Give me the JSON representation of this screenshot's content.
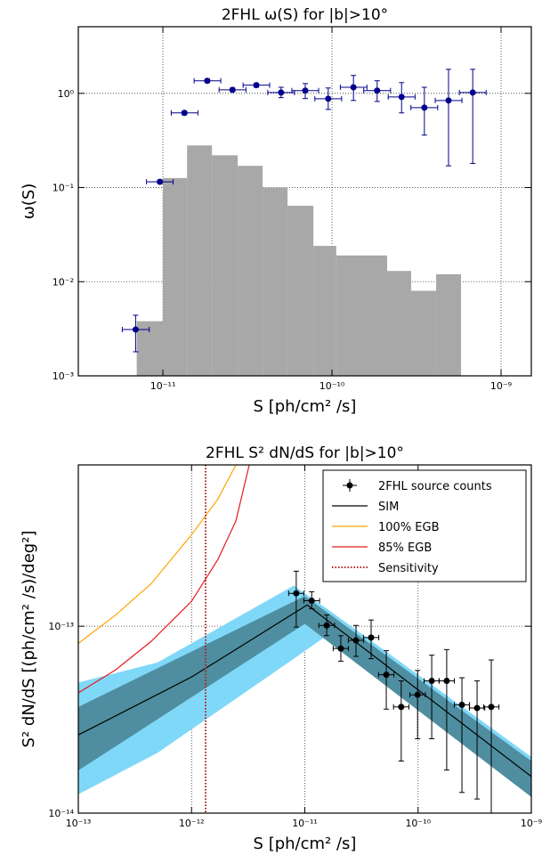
{
  "chart_data": [
    {
      "type": "histogram",
      "title": "2FHL ω(S) for |b|>10°",
      "xlabel": "S [ph/cm² /s]",
      "ylabel": "ω(S)",
      "log_x": true,
      "log_y": true,
      "grid": true,
      "xlim": [
        3.16e-12,
        1.51e-09
      ],
      "ylim": [
        0.001,
        5.1
      ],
      "xticks": [
        {
          "value": 1e-11,
          "label": "10⁻¹¹"
        },
        {
          "value": 1e-10,
          "label": "10⁻¹⁰"
        },
        {
          "value": 1e-09,
          "label": "10⁻⁹"
        }
      ],
      "yticks": [
        {
          "value": 0.001,
          "label": "10⁻³"
        },
        {
          "value": 0.01,
          "label": "10⁻²"
        },
        {
          "value": 0.1,
          "label": "10⁻¹"
        },
        {
          "value": 1,
          "label": "10⁰"
        }
      ],
      "bins": [
        7e-12,
        1e-11,
        1.39e-11,
        1.95e-11,
        2.77e-11,
        3.89e-11,
        5.46e-11,
        7.76e-11,
        1.06e-10,
        1.51e-10,
        2.12e-10,
        2.94e-10,
        4.13e-10,
        5.8e-10
      ],
      "values": [
        0.0038,
        0.126,
        0.28,
        0.22,
        0.17,
        0.1,
        0.064,
        0.024,
        0.019,
        0.019,
        0.013,
        0.008,
        0.012
      ],
      "color": "#a8a8a8",
      "points": {
        "color": "#00008b",
        "x": [
          6.9e-12,
          9.6e-12,
          1.34e-11,
          1.83e-11,
          2.58e-11,
          3.57e-11,
          5e-11,
          6.95e-11,
          9.5e-11,
          1.34e-10,
          1.85e-10,
          2.58e-10,
          3.52e-10,
          4.89e-10,
          6.8e-10
        ],
        "values": [
          0.0031,
          0.115,
          0.62,
          1.36,
          1.09,
          1.22,
          1.02,
          1.07,
          0.877,
          1.16,
          1.07,
          0.916,
          0.705,
          0.84,
          1.02
        ],
        "x_lo": [
          5.75e-12,
          8e-12,
          1.12e-11,
          1.53e-11,
          2.15e-11,
          2.98e-11,
          4.17e-11,
          5.79e-11,
          7.92e-11,
          1.12e-10,
          1.54e-10,
          2.15e-10,
          2.93e-10,
          4.08e-10,
          5.67e-10
        ],
        "x_hi": [
          8.3e-12,
          1.15e-11,
          1.61e-11,
          2.2e-11,
          3.1e-11,
          4.28e-11,
          6e-11,
          8.34e-11,
          1.14e-10,
          1.61e-10,
          2.22e-10,
          3.1e-10,
          4.22e-10,
          5.87e-10,
          8.16e-10
        ],
        "y_lo": [
          0.0018,
          0.11,
          0.59,
          1.3,
          1.04,
          1.16,
          0.9,
          0.88,
          0.675,
          0.84,
          0.82,
          0.62,
          0.36,
          0.17,
          0.18
        ],
        "y_hi": [
          0.0044,
          0.12,
          0.65,
          1.42,
          1.14,
          1.28,
          1.16,
          1.27,
          1.14,
          1.55,
          1.36,
          1.3,
          1.16,
          1.8,
          1.8
        ]
      }
    },
    {
      "type": "line",
      "title": "2FHL S² dN/dS for |b|>10°",
      "xlabel": "S [ph/cm² /s]",
      "ylabel": "S² dN/dS [(ph/cm² /s)/deg²]",
      "log_x": true,
      "log_y": true,
      "grid": true,
      "legend": "upper right",
      "xlim": [
        1e-13,
        1e-09
      ],
      "ylim": [
        1e-14,
        7.3e-13
      ],
      "xticks": [
        {
          "value": 1e-13,
          "label": "10⁻¹³"
        },
        {
          "value": 1e-12,
          "label": "10⁻¹²"
        },
        {
          "value": 1e-11,
          "label": "10⁻¹¹"
        },
        {
          "value": 1e-10,
          "label": "10⁻¹⁰"
        },
        {
          "value": 1e-09,
          "label": "10⁻⁹"
        }
      ],
      "yticks": [
        {
          "value": 1e-14,
          "label": "10⁻¹⁴"
        },
        {
          "value": 1e-13,
          "label": "10⁻¹³"
        }
      ],
      "bands": [
        {
          "color": "#80d8f8",
          "x": [
            1e-13,
            5e-13,
            8e-12,
            1.6e-11,
            1e-09
          ],
          "upper": [
            5e-14,
            6.4e-14,
            1.65e-13,
            1.23e-13,
            2e-14
          ],
          "lower": [
            1.26e-14,
            2.1e-14,
            6.7e-14,
            9e-14,
            1.25e-14
          ]
        },
        {
          "color": "#4f8ea0",
          "x": [
            1e-13,
            1e-11,
            1e-09
          ],
          "upper": [
            3.7e-14,
            1.45e-13,
            1.9e-14
          ],
          "lower": [
            1.69e-14,
            1.03e-13,
            1.22e-14
          ]
        }
      ],
      "series": [
        {
          "name": "2FHL source counts",
          "kind": "errorbar",
          "color": "#000000",
          "x": [
            8.4e-12,
            1.15e-11,
            1.56e-11,
            2.08e-11,
            2.83e-11,
            3.85e-11,
            5.24e-11,
            7.1e-11,
            9.9e-11,
            1.32e-10,
            1.79e-10,
            2.44e-10,
            3.32e-10,
            4.43e-10
          ],
          "values": [
            1.5e-13,
            1.37e-13,
            1.01e-13,
            7.6e-14,
            8.4e-14,
            8.7e-14,
            5.5e-14,
            3.7e-14,
            4.3e-14,
            5.1e-14,
            5.1e-14,
            3.8e-14,
            3.65e-14,
            3.7e-14
          ],
          "x_lo": [
            7.2e-12,
            9.8e-12,
            1.33e-11,
            1.78e-11,
            2.42e-11,
            3.29e-11,
            4.48e-11,
            6.07e-11,
            8.46e-11,
            1.13e-10,
            1.53e-10,
            2.09e-10,
            2.84e-10,
            3.79e-10
          ],
          "x_hi": [
            9.8e-12,
            1.35e-11,
            1.83e-11,
            2.43e-11,
            3.31e-11,
            4.5e-11,
            6.13e-11,
            8.3e-11,
            1.16e-10,
            1.54e-10,
            2.09e-10,
            2.85e-10,
            3.88e-10,
            5.18e-10
          ],
          "y_lo": [
            9.9e-14,
            1.24e-13,
            8.9e-14,
            6.5e-14,
            6.9e-14,
            6.7e-14,
            3.6e-14,
            1.9e-14,
            2.5e-14,
            2.5e-14,
            1.7e-14,
            1.29e-14,
            1.19e-14,
            8e-15
          ],
          "y_hi": [
            1.97e-13,
            1.53e-13,
            1.15e-13,
            8.9e-14,
            1.01e-13,
            1.08e-13,
            7.4e-14,
            5.1e-14,
            5.8e-14,
            7e-14,
            7.5e-14,
            5.3e-14,
            5.1e-14,
            6.6e-14
          ]
        },
        {
          "name": "SIM",
          "kind": "line",
          "color": "#000000",
          "x": [
            1e-13,
            1e-12,
            1.05e-11,
            1e-09
          ],
          "values": [
            2.62e-14,
            5.35e-14,
            1.3e-13,
            1.57e-14
          ]
        },
        {
          "name": "100% EGB",
          "kind": "line",
          "color": "#ffa500",
          "x": [
            1e-13,
            2.14e-13,
            4.4e-13,
            1e-12,
            1.71e-12,
            2.46e-12
          ],
          "values": [
            8.1e-14,
            1.15e-13,
            1.69e-13,
            3.09e-13,
            4.8e-13,
            7.3e-13
          ]
        },
        {
          "name": "85% EGB",
          "kind": "line",
          "color": "#e41a1c",
          "x": [
            1e-13,
            2.14e-13,
            4.4e-13,
            1e-12,
            1.71e-12,
            2.46e-12,
            3.23e-12
          ],
          "values": [
            4.4e-14,
            5.85e-14,
            8.3e-14,
            1.36e-13,
            2.28e-13,
            3.65e-13,
            7.3e-13
          ]
        },
        {
          "name": "Sensitivity",
          "kind": "vline",
          "color": "#b22222",
          "x": 1.33e-12
        }
      ]
    }
  ]
}
